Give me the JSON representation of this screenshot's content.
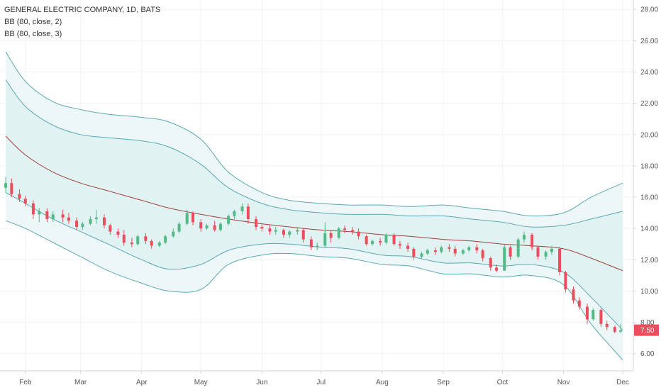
{
  "legend": {
    "title": "GENERAL ELECTRIC COMPANY, 1D, BATS",
    "bb2": "BB (80, close, 2)",
    "bb3": "BB (80, close, 3)"
  },
  "colors": {
    "up": "#53b987",
    "down": "#eb4d5c",
    "basis": "#a0413c",
    "band": "#5ba8b3",
    "fill_outer": "#eef7f8",
    "fill_inner": "#e1f2f2",
    "grid": "#f0f3f6",
    "axis": "#d6d6d6",
    "last_price_bg": "#eb4d5c"
  },
  "chart_data": {
    "type": "candlestick",
    "symbol": "GENERAL ELECTRIC COMPANY",
    "interval": "1D",
    "exchange": "BATS",
    "y_axis": {
      "ticks": [
        "6.00",
        "8.00",
        "10.00",
        "12.00",
        "14.00",
        "16.00",
        "18.00",
        "20.00",
        "22.00",
        "24.00",
        "26.00",
        "28.00"
      ],
      "ylim": [
        4.9,
        28.6
      ],
      "side": "right"
    },
    "x_axis": {
      "month_labels": [
        "Feb",
        "Mar",
        "Apr",
        "May",
        "Jun",
        "Jul",
        "Aug",
        "Sep",
        "Oct",
        "Nov",
        "Dec"
      ]
    },
    "last_price": "7.50",
    "series": [
      {
        "name": "BB (80, close, 2)",
        "kind": "band"
      },
      {
        "name": "BB (80, close, 3)",
        "kind": "band"
      }
    ],
    "bands": {
      "x": [
        "Jan 22",
        "Feb 1",
        "Feb 15",
        "Mar 1",
        "Mar 15",
        "Apr 1",
        "Apr 15",
        "May 1",
        "May 15",
        "Jun 1",
        "Jun 15",
        "Jul 1",
        "Jul 15",
        "Aug 1",
        "Aug 15",
        "Sep 1",
        "Sep 15",
        "Oct 1",
        "Oct 15",
        "Nov 1",
        "Nov 15",
        "Dec 1"
      ],
      "basis": [
        19.9,
        18.7,
        17.6,
        16.9,
        16.4,
        15.8,
        15.3,
        14.9,
        14.6,
        14.3,
        14.1,
        13.9,
        13.8,
        13.6,
        13.5,
        13.3,
        13.2,
        13.0,
        12.9,
        12.7,
        12.1,
        11.3
      ],
      "upper2": [
        23.5,
        21.8,
        20.6,
        20.0,
        19.8,
        19.6,
        19.2,
        18.1,
        16.6,
        15.6,
        15.2,
        15.0,
        14.9,
        14.9,
        14.8,
        14.8,
        14.6,
        14.4,
        14.1,
        14.2,
        14.6,
        15.1
      ],
      "lower2": [
        16.3,
        15.6,
        14.6,
        13.8,
        13.0,
        12.0,
        11.4,
        11.7,
        12.6,
        13.0,
        13.0,
        12.8,
        12.7,
        12.3,
        12.2,
        11.8,
        11.8,
        11.6,
        11.7,
        11.2,
        9.6,
        7.5
      ],
      "upper3": [
        25.3,
        23.4,
        22.1,
        21.6,
        21.3,
        21.1,
        20.8,
        19.7,
        17.6,
        16.3,
        15.8,
        15.6,
        15.5,
        15.5,
        15.4,
        15.5,
        15.3,
        15.1,
        14.8,
        15.0,
        16.0,
        16.9
      ],
      "lower3": [
        14.5,
        14.0,
        13.1,
        12.2,
        11.3,
        10.5,
        10.0,
        10.1,
        11.7,
        12.3,
        12.4,
        12.2,
        12.1,
        11.7,
        11.6,
        11.1,
        11.1,
        10.9,
        11.0,
        10.4,
        7.9,
        5.6
      ]
    },
    "candles": [
      {
        "d": "Jan 22",
        "o": 16.6,
        "h": 17.3,
        "c": 16.9,
        "l": 16.3
      },
      {
        "d": "Jan 25",
        "o": 16.9,
        "h": 17.2,
        "c": 16.2,
        "l": 16.0
      },
      {
        "d": "Jan 29",
        "o": 16.2,
        "h": 16.5,
        "c": 15.9,
        "l": 15.7
      },
      {
        "d": "Feb 1",
        "o": 15.9,
        "h": 16.1,
        "c": 15.6,
        "l": 15.4
      },
      {
        "d": "Feb 5",
        "o": 15.6,
        "h": 15.8,
        "c": 14.9,
        "l": 14.6
      },
      {
        "d": "Feb 8",
        "o": 14.9,
        "h": 15.3,
        "c": 15.1,
        "l": 14.4
      },
      {
        "d": "Feb 12",
        "o": 15.1,
        "h": 15.3,
        "c": 14.6,
        "l": 14.4
      },
      {
        "d": "Feb 15",
        "o": 14.6,
        "h": 15.1,
        "c": 14.9,
        "l": 14.4
      },
      {
        "d": "Feb 20",
        "o": 14.9,
        "h": 15.2,
        "c": 14.7,
        "l": 14.4
      },
      {
        "d": "Feb 23",
        "o": 14.7,
        "h": 15.0,
        "c": 14.5,
        "l": 14.3
      },
      {
        "d": "Feb 27",
        "o": 14.5,
        "h": 14.7,
        "c": 14.1,
        "l": 13.9
      },
      {
        "d": "Mar 2",
        "o": 14.1,
        "h": 14.4,
        "c": 14.3,
        "l": 13.9
      },
      {
        "d": "Mar 6",
        "o": 14.3,
        "h": 14.8,
        "c": 14.6,
        "l": 14.2
      },
      {
        "d": "Mar 9",
        "o": 14.6,
        "h": 15.2,
        "c": 14.7,
        "l": 14.3
      },
      {
        "d": "Mar 13",
        "o": 14.7,
        "h": 14.9,
        "c": 14.2,
        "l": 14.0
      },
      {
        "d": "Mar 16",
        "o": 14.2,
        "h": 14.3,
        "c": 13.8,
        "l": 13.6
      },
      {
        "d": "Mar 20",
        "o": 13.8,
        "h": 14.0,
        "c": 13.6,
        "l": 13.4
      },
      {
        "d": "Mar 23",
        "o": 13.6,
        "h": 13.9,
        "c": 13.1,
        "l": 12.9
      },
      {
        "d": "Mar 27",
        "o": 13.1,
        "h": 13.4,
        "c": 13.0,
        "l": 12.8
      },
      {
        "d": "Mar 30",
        "o": 13.0,
        "h": 13.6,
        "c": 13.5,
        "l": 12.9
      },
      {
        "d": "Apr 3",
        "o": 13.5,
        "h": 13.7,
        "c": 13.2,
        "l": 13.0
      },
      {
        "d": "Apr 6",
        "o": 13.2,
        "h": 13.3,
        "c": 12.9,
        "l": 12.7
      },
      {
        "d": "Apr 10",
        "o": 12.9,
        "h": 13.2,
        "c": 13.1,
        "l": 12.8
      },
      {
        "d": "Apr 13",
        "o": 13.1,
        "h": 13.6,
        "c": 13.5,
        "l": 13.0
      },
      {
        "d": "Apr 17",
        "o": 13.5,
        "h": 14.0,
        "c": 13.8,
        "l": 13.4
      },
      {
        "d": "Apr 20",
        "o": 13.8,
        "h": 14.4,
        "c": 14.3,
        "l": 13.7
      },
      {
        "d": "Apr 24",
        "o": 14.3,
        "h": 15.2,
        "c": 15.0,
        "l": 14.2
      },
      {
        "d": "Apr 27",
        "o": 15.0,
        "h": 15.1,
        "c": 14.4,
        "l": 14.2
      },
      {
        "d": "May 1",
        "o": 14.4,
        "h": 14.6,
        "c": 14.0,
        "l": 13.8
      },
      {
        "d": "May 4",
        "o": 14.0,
        "h": 14.3,
        "c": 14.2,
        "l": 13.9
      },
      {
        "d": "May 8",
        "o": 14.2,
        "h": 14.5,
        "c": 13.9,
        "l": 13.8
      },
      {
        "d": "May 11",
        "o": 13.9,
        "h": 14.4,
        "c": 14.3,
        "l": 13.8
      },
      {
        "d": "May 15",
        "o": 14.3,
        "h": 14.9,
        "c": 14.8,
        "l": 14.2
      },
      {
        "d": "May 18",
        "o": 14.8,
        "h": 15.2,
        "c": 15.1,
        "l": 14.6
      },
      {
        "d": "May 22",
        "o": 15.1,
        "h": 15.6,
        "c": 15.4,
        "l": 14.9
      },
      {
        "d": "May 25",
        "o": 15.4,
        "h": 15.6,
        "c": 14.6,
        "l": 14.3
      },
      {
        "d": "May 29",
        "o": 14.6,
        "h": 14.8,
        "c": 14.1,
        "l": 13.9
      },
      {
        "d": "Jun 1",
        "o": 14.1,
        "h": 14.3,
        "c": 14.0,
        "l": 13.8
      },
      {
        "d": "Jun 5",
        "o": 14.0,
        "h": 14.2,
        "c": 13.8,
        "l": 13.6
      },
      {
        "d": "Jun 8",
        "o": 13.8,
        "h": 14.1,
        "c": 13.9,
        "l": 13.6
      },
      {
        "d": "Jun 12",
        "o": 13.9,
        "h": 14.0,
        "c": 13.6,
        "l": 13.4
      },
      {
        "d": "Jun 15",
        "o": 13.6,
        "h": 13.9,
        "c": 13.8,
        "l": 13.4
      },
      {
        "d": "Jun 19",
        "o": 13.8,
        "h": 14.1,
        "c": 13.9,
        "l": 13.6
      },
      {
        "d": "Jun 22",
        "o": 13.9,
        "h": 14.0,
        "c": 13.3,
        "l": 13.1
      },
      {
        "d": "Jun 26",
        "o": 13.3,
        "h": 13.5,
        "c": 12.8,
        "l": 12.6
      },
      {
        "d": "Jun 29",
        "o": 12.8,
        "h": 13.1,
        "c": 12.9,
        "l": 12.6
      },
      {
        "d": "Jul 3",
        "o": 12.9,
        "h": 14.4,
        "c": 13.7,
        "l": 12.8
      },
      {
        "d": "Jul 6",
        "o": 13.7,
        "h": 13.9,
        "c": 13.4,
        "l": 13.1
      },
      {
        "d": "Jul 10",
        "o": 13.4,
        "h": 14.1,
        "c": 14.0,
        "l": 13.3
      },
      {
        "d": "Jul 13",
        "o": 14.0,
        "h": 14.2,
        "c": 13.9,
        "l": 13.7
      },
      {
        "d": "Jul 17",
        "o": 13.9,
        "h": 14.1,
        "c": 13.8,
        "l": 13.6
      },
      {
        "d": "Jul 20",
        "o": 13.8,
        "h": 14.0,
        "c": 13.5,
        "l": 13.3
      },
      {
        "d": "Jul 24",
        "o": 13.5,
        "h": 13.6,
        "c": 13.0,
        "l": 12.9
      },
      {
        "d": "Jul 27",
        "o": 13.0,
        "h": 13.3,
        "c": 13.2,
        "l": 12.9
      },
      {
        "d": "Jul 31",
        "o": 13.2,
        "h": 13.4,
        "c": 13.1,
        "l": 12.9
      },
      {
        "d": "Aug 3",
        "o": 13.1,
        "h": 13.7,
        "c": 13.6,
        "l": 13.0
      },
      {
        "d": "Aug 7",
        "o": 13.6,
        "h": 13.7,
        "c": 13.0,
        "l": 12.9
      },
      {
        "d": "Aug 10",
        "o": 13.0,
        "h": 13.2,
        "c": 12.9,
        "l": 12.7
      },
      {
        "d": "Aug 14",
        "o": 12.9,
        "h": 13.1,
        "c": 12.7,
        "l": 12.5
      },
      {
        "d": "Aug 17",
        "o": 12.7,
        "h": 12.8,
        "c": 12.2,
        "l": 12.0
      },
      {
        "d": "Aug 21",
        "o": 12.2,
        "h": 12.5,
        "c": 12.4,
        "l": 12.1
      },
      {
        "d": "Aug 24",
        "o": 12.4,
        "h": 12.7,
        "c": 12.6,
        "l": 12.3
      },
      {
        "d": "Aug 28",
        "o": 12.6,
        "h": 12.8,
        "c": 12.5,
        "l": 12.3
      },
      {
        "d": "Aug 31",
        "o": 12.5,
        "h": 12.9,
        "c": 12.8,
        "l": 12.4
      },
      {
        "d": "Sep 4",
        "o": 12.8,
        "h": 13.0,
        "c": 12.7,
        "l": 12.5
      },
      {
        "d": "Sep 7",
        "o": 12.7,
        "h": 12.9,
        "c": 12.4,
        "l": 12.2
      },
      {
        "d": "Sep 11",
        "o": 12.4,
        "h": 12.7,
        "c": 12.6,
        "l": 12.3
      },
      {
        "d": "Sep 14",
        "o": 12.6,
        "h": 12.9,
        "c": 12.8,
        "l": 12.5
      },
      {
        "d": "Sep 18",
        "o": 12.8,
        "h": 13.0,
        "c": 12.6,
        "l": 12.4
      },
      {
        "d": "Sep 21",
        "o": 12.6,
        "h": 12.7,
        "c": 12.1,
        "l": 11.9
      },
      {
        "d": "Sep 25",
        "o": 12.1,
        "h": 12.2,
        "c": 11.5,
        "l": 11.3
      },
      {
        "d": "Sep 28",
        "o": 11.5,
        "h": 11.7,
        "c": 11.3,
        "l": 11.2
      },
      {
        "d": "Oct 2",
        "o": 11.3,
        "h": 13.0,
        "c": 12.8,
        "l": 11.3
      },
      {
        "d": "Oct 5",
        "o": 12.8,
        "h": 12.9,
        "c": 12.2,
        "l": 12.0
      },
      {
        "d": "Oct 9",
        "o": 12.2,
        "h": 13.4,
        "c": 13.3,
        "l": 12.1
      },
      {
        "d": "Oct 12",
        "o": 13.3,
        "h": 13.8,
        "c": 13.6,
        "l": 13.1
      },
      {
        "d": "Oct 16",
        "o": 13.6,
        "h": 13.7,
        "c": 12.8,
        "l": 12.6
      },
      {
        "d": "Oct 19",
        "o": 12.8,
        "h": 12.9,
        "c": 12.2,
        "l": 12.0
      },
      {
        "d": "Oct 23",
        "o": 12.2,
        "h": 12.6,
        "c": 12.5,
        "l": 12.0
      },
      {
        "d": "Oct 26",
        "o": 12.5,
        "h": 12.9,
        "c": 12.7,
        "l": 12.3
      },
      {
        "d": "Oct 30",
        "o": 12.7,
        "h": 12.8,
        "c": 11.2,
        "l": 11.0
      },
      {
        "d": "Nov 2",
        "o": 11.2,
        "h": 11.3,
        "c": 10.1,
        "l": 9.9
      },
      {
        "d": "Nov 6",
        "o": 10.1,
        "h": 10.3,
        "c": 9.4,
        "l": 9.2
      },
      {
        "d": "Nov 9",
        "o": 9.4,
        "h": 9.6,
        "c": 9.0,
        "l": 8.8
      },
      {
        "d": "Nov 13",
        "o": 9.0,
        "h": 9.2,
        "c": 8.2,
        "l": 7.9
      },
      {
        "d": "Nov 16",
        "o": 8.2,
        "h": 8.9,
        "c": 8.8,
        "l": 8.1
      },
      {
        "d": "Nov 20",
        "o": 8.8,
        "h": 8.9,
        "c": 7.9,
        "l": 7.7
      },
      {
        "d": "Nov 23",
        "o": 7.9,
        "h": 8.1,
        "c": 7.7,
        "l": 7.5
      },
      {
        "d": "Nov 27",
        "o": 7.7,
        "h": 7.8,
        "c": 7.4,
        "l": 7.3
      },
      {
        "d": "Nov 30",
        "o": 7.4,
        "h": 7.9,
        "c": 7.5,
        "l": 7.3
      }
    ]
  }
}
